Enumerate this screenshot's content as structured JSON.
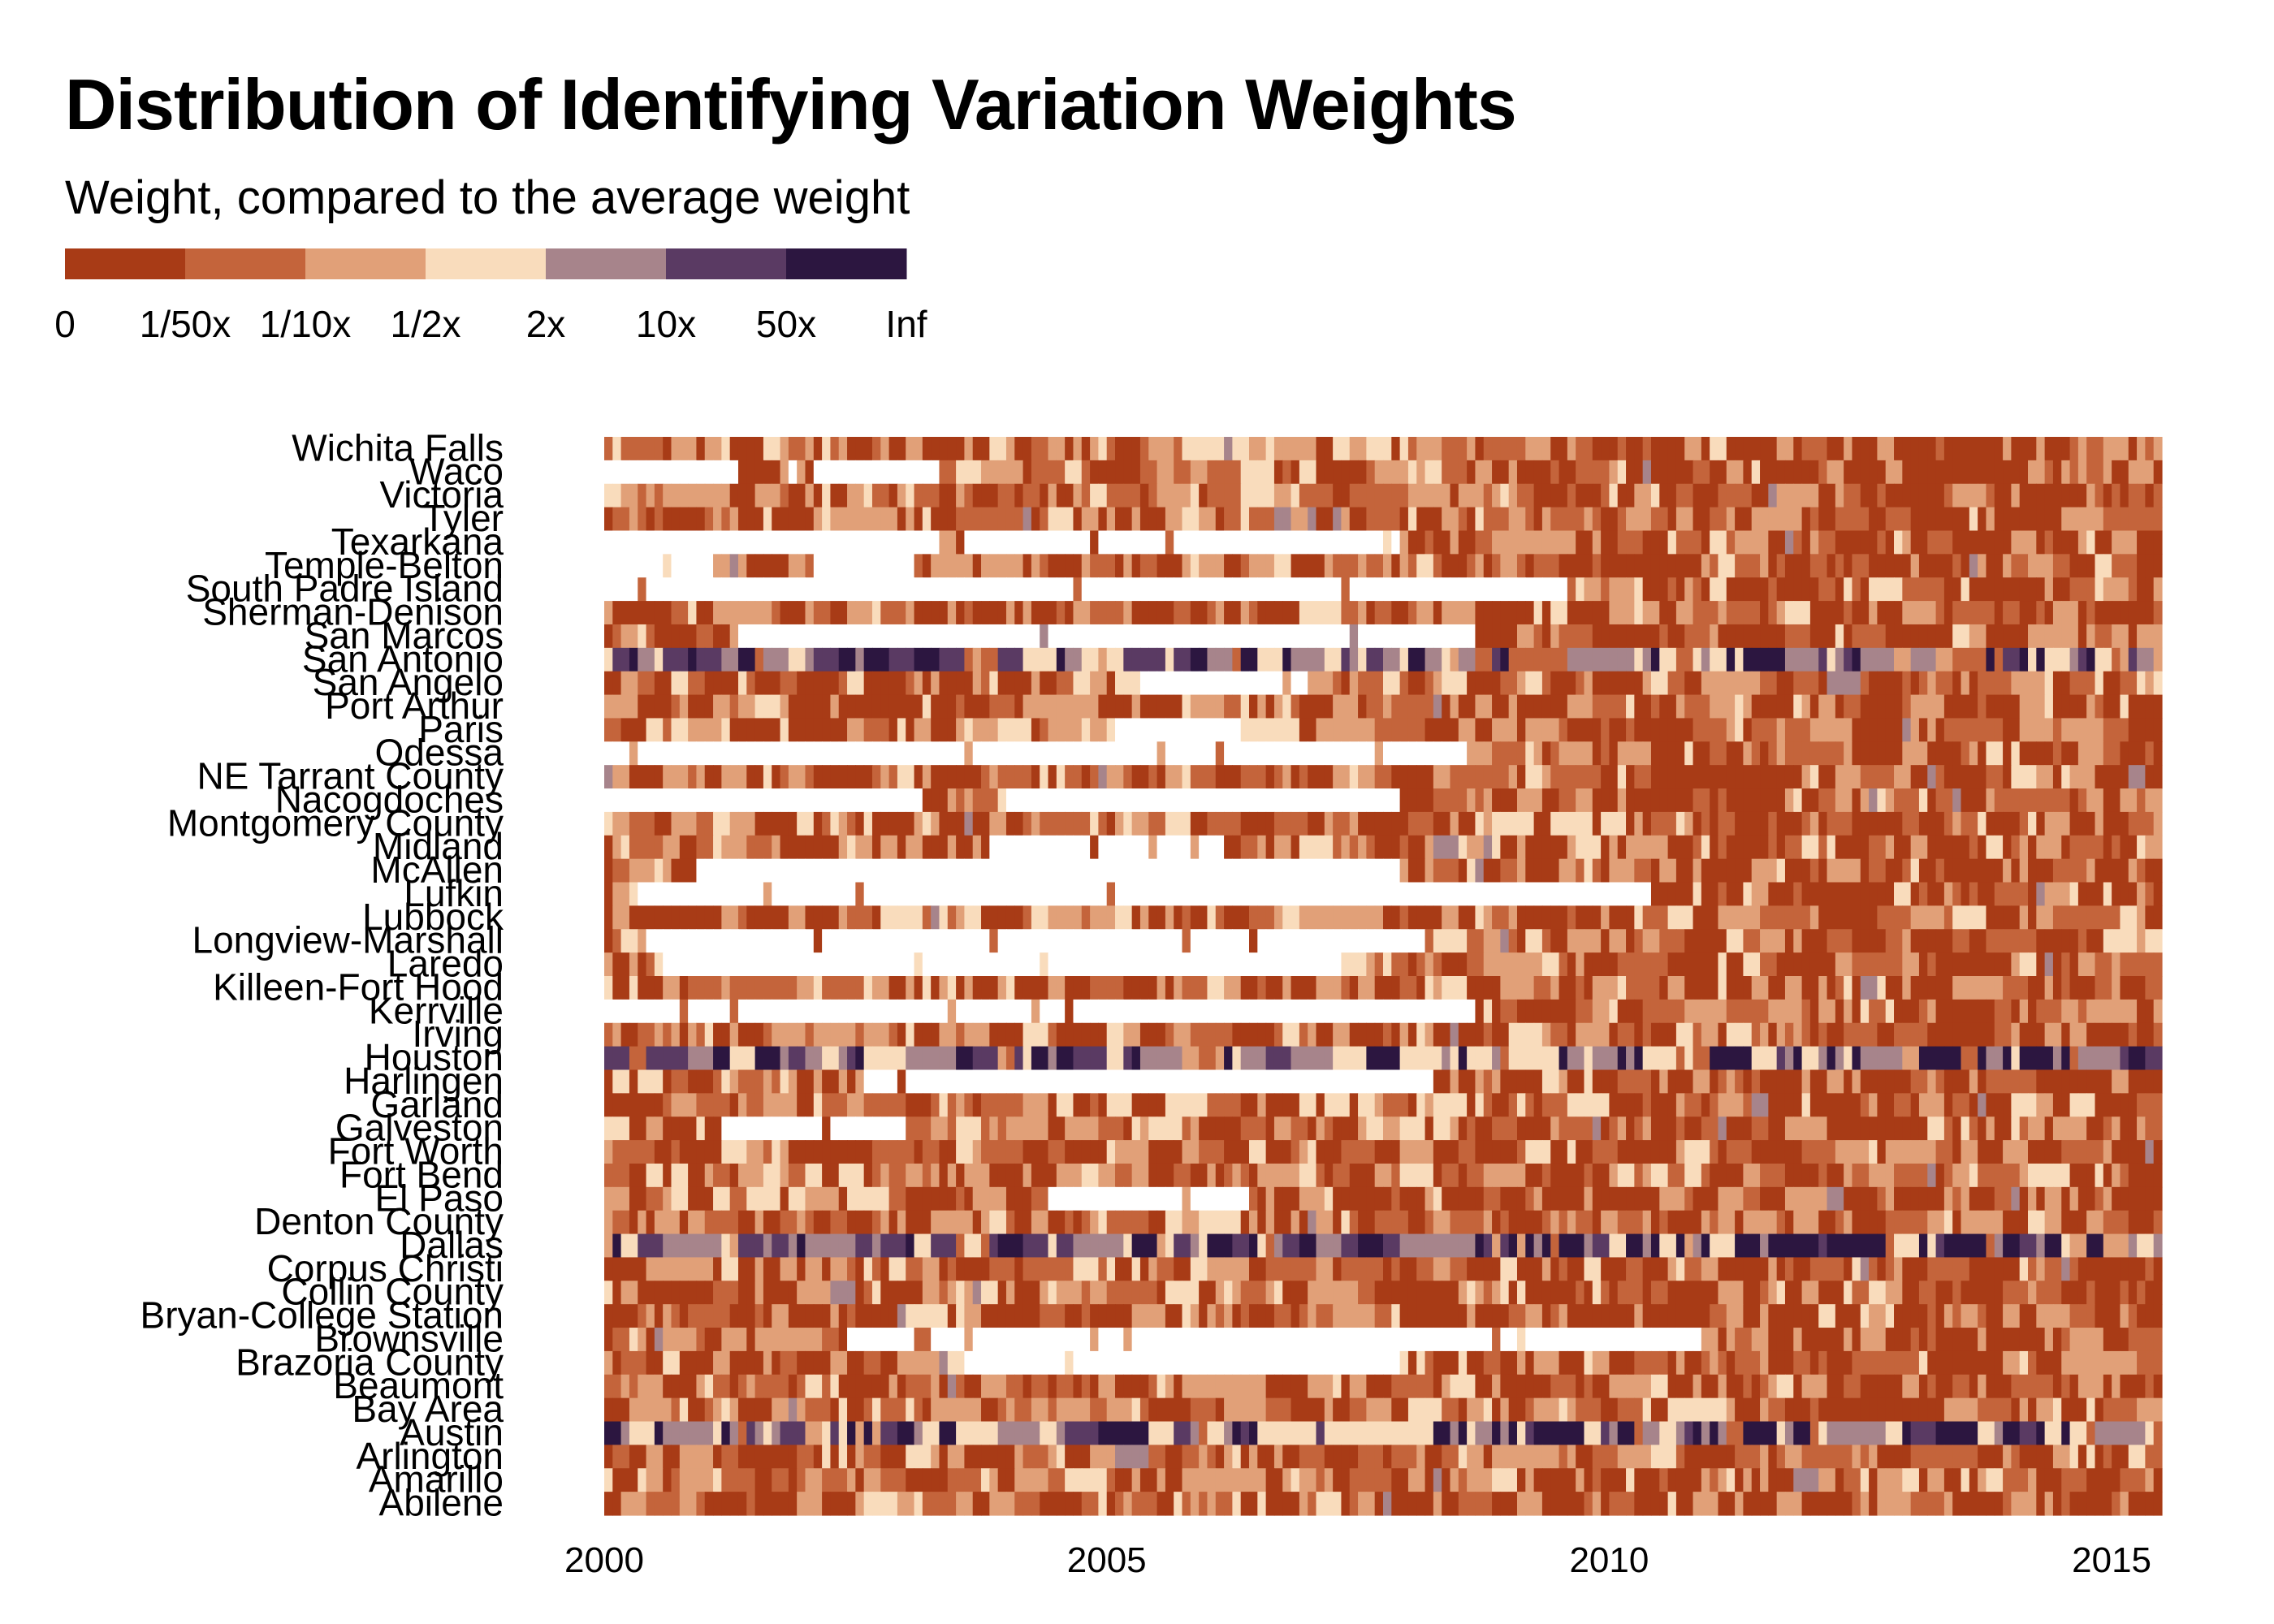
{
  "chart_data": {
    "type": "heatmap",
    "title": "Distribution of Identifying Variation Weights",
    "subtitle": "Weight, compared to the average weight",
    "legend": {
      "labels": [
        "0",
        "1/50x",
        "1/10x",
        "1/2x",
        "2x",
        "10x",
        "50x",
        "Inf"
      ],
      "colors": [
        "#a83b16",
        "#c4643b",
        "#e1a078",
        "#f9dcbc",
        "#a7848b",
        "#5a3a63",
        "#2c1640"
      ],
      "placement": "top-left"
    },
    "missing_color": "#ffffff",
    "x_axis": {
      "ticks": [
        "2000",
        "2005",
        "2010",
        "2015"
      ],
      "range": [
        2000,
        2015.5
      ]
    },
    "y_categories": [
      "Wichita Falls",
      "Waco",
      "Victoria",
      "Tyler",
      "Texarkana",
      "Temple-Belton",
      "South Padre Island",
      "Sherman-Denison",
      "San Marcos",
      "San Antonio",
      "San Angelo",
      "Port Arthur",
      "Paris",
      "Odessa",
      "NE Tarrant County",
      "Nacogdoches",
      "Montgomery County",
      "Midland",
      "McAllen",
      "Lufkin",
      "Lubbock",
      "Longview-Marshall",
      "Laredo",
      "Killeen-Fort Hood",
      "Kerrville",
      "Irving",
      "Houston",
      "Harlingen",
      "Garland",
      "Galveston",
      "Fort Worth",
      "Fort Bend",
      "El Paso",
      "Denton County",
      "Dallas",
      "Corpus Christi",
      "Collin County",
      "Bryan-College Station",
      "Brownsville",
      "Brazoria County",
      "Beaumont",
      "Bay Area",
      "Austin",
      "Arlington",
      "Amarillo",
      "Abilene"
    ],
    "value_encoding": "weight bin index 0-6 (0 = lowest bin '0 to 1/50x', 6 = '50x to Inf'); rows listed top to bottom; one column per month from Jan 2000 to mid 2015; data estimated from the image",
    "missing_ranges_by_row": {
      "Waco": [
        [
          2000,
          2001.3
        ],
        [
          2001.8,
          2003.3
        ]
      ],
      "Texarkana": [
        [
          2000,
          2003.3
        ],
        [
          2003.6,
          2007.9
        ]
      ],
      "Temple-Belton": [
        [
          2000,
          2001.1
        ],
        [
          2002.1,
          2003.1
        ]
      ],
      "South Padre Island": [
        [
          2000,
          2009.6
        ]
      ],
      "San Marcos": [
        [
          2001.3,
          2008.7
        ]
      ],
      "San Angelo": [
        [
          2005.3,
          2007.0
        ]
      ],
      "Paris": [
        [
          2005.1,
          2006.4
        ]
      ],
      "Odessa": [
        [
          2000,
          2008.6
        ]
      ],
      "Nacogdoches": [
        [
          2000,
          2003.2
        ],
        [
          2004.0,
          2007.9
        ]
      ],
      "Midland": [
        [
          2003.8,
          2006.2
        ]
      ],
      "McAllen": [
        [
          2000.9,
          2007.9
        ]
      ],
      "Lufkin": [
        [
          2000.3,
          2010.4
        ]
      ],
      "Longview-Marshall": [
        [
          2000.4,
          2008.2
        ]
      ],
      "Laredo": [
        [
          2000.6,
          2007.3
        ]
      ],
      "Kerrville": [
        [
          2000,
          2008.7
        ]
      ],
      "Harlingen": [
        [
          2002.6,
          2008.3
        ]
      ],
      "Galveston": [
        [
          2001.2,
          2003.0
        ]
      ],
      "El Paso": [
        [
          2004.4,
          2006.4
        ]
      ],
      "Brownsville": [
        [
          2002.3,
          2010.9
        ]
      ],
      "Brazoria County": [
        [
          2003.6,
          2007.9
        ]
      ]
    },
    "high_weight_rows": [
      "San Antonio",
      "Houston",
      "Dallas",
      "Austin"
    ]
  }
}
